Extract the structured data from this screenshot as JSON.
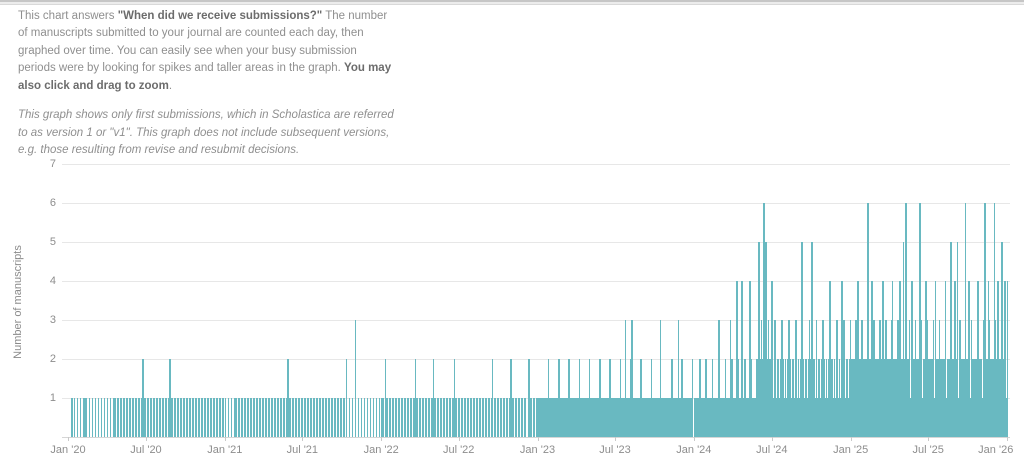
{
  "description": {
    "p1_text1": "This chart answers ",
    "p1_bold1": "\"When did we receive submissions?\"",
    "p1_text2": " The number of manuscripts submitted to your journal are counted each day, then graphed over time. You can easily see when your busy submission periods were by looking for spikes and taller areas in the graph. ",
    "p1_bold2": "You may also click and drag to zoom",
    "p1_text3": ".",
    "p2": "This graph shows only first submissions, which in Scholastica are referred to as version 1 or \"v1\". This graph does not include subsequent versions, e.g. those resulting from revise and resubmit decisions."
  },
  "chart_data": {
    "type": "bar",
    "title": "When did we receive submissions?",
    "xlabel": "",
    "ylabel": "Number of manuscripts",
    "ylim": [
      0,
      7
    ],
    "y_ticks": [
      1,
      2,
      3,
      4,
      5,
      6,
      7
    ],
    "grid": true,
    "legend": "none",
    "bar_color": "#69b9c1",
    "x_start": "2020-01-01",
    "x_end": "2026-01-01",
    "total_days": 2192,
    "x_ticks": [
      {
        "label": "Jan '20",
        "day": 0
      },
      {
        "label": "Jul '20",
        "day": 182
      },
      {
        "label": "Jan '21",
        "day": 366
      },
      {
        "label": "Jul '21",
        "day": 547
      },
      {
        "label": "Jan '22",
        "day": 731
      },
      {
        "label": "Jul '22",
        "day": 912
      },
      {
        "label": "Jan '23",
        "day": 1096
      },
      {
        "label": "Jul '23",
        "day": 1277
      },
      {
        "label": "Jan '24",
        "day": 1461
      },
      {
        "label": "Jul '24",
        "day": 1643
      },
      {
        "label": "Jan '25",
        "day": 1827
      },
      {
        "label": "Jul '25",
        "day": 2008
      },
      {
        "label": "Jan '26",
        "day": 2192
      }
    ],
    "bars_by_height": {
      "1": [
        6,
        9,
        13,
        20,
        27,
        34,
        38,
        41,
        48,
        55,
        62,
        69,
        76,
        83,
        90,
        97,
        104,
        108,
        115,
        122,
        129,
        136,
        143,
        150,
        157,
        164,
        171,
        178,
        185,
        192,
        199,
        206,
        213,
        220,
        227,
        234,
        241,
        248,
        255,
        262,
        269,
        276,
        283,
        290,
        297,
        304,
        311,
        318,
        325,
        332,
        339,
        346,
        353,
        360,
        366,
        373,
        380,
        387,
        391,
        398,
        405,
        412,
        419,
        426,
        433,
        440,
        447,
        454,
        461,
        468,
        475,
        482,
        489,
        496,
        503,
        510,
        517,
        524,
        531,
        538,
        545,
        552,
        559,
        566,
        573,
        580,
        587,
        594,
        601,
        608,
        615,
        622,
        629,
        636,
        643,
        655,
        662,
        676,
        683,
        690,
        697,
        704,
        711,
        718,
        725,
        731,
        735,
        743,
        750,
        757,
        764,
        771,
        778,
        785,
        792,
        799,
        806,
        813,
        820,
        827,
        834,
        841,
        848,
        855,
        862,
        869,
        876,
        883,
        890,
        897,
        904,
        911,
        918,
        925,
        932,
        939,
        946,
        953,
        960,
        967,
        974,
        981,
        988,
        995,
        1002,
        1009,
        1016,
        1023,
        1030,
        1037,
        1044,
        1051,
        1058,
        1065,
        1079,
        1086,
        1093,
        1096,
        1099,
        1102,
        1105,
        1108,
        1111,
        1114,
        1117,
        1123,
        1126,
        1129,
        1132,
        1135,
        1138,
        1141,
        1147,
        1150,
        1153,
        1156,
        1159,
        1162,
        1165,
        1171,
        1174,
        1177,
        1180,
        1183,
        1186,
        1189,
        1195,
        1198,
        1201,
        1204,
        1207,
        1210,
        1213,
        1219,
        1222,
        1225,
        1228,
        1231,
        1234,
        1237,
        1243,
        1246,
        1249,
        1252,
        1255,
        1258,
        1261,
        1267,
        1270,
        1273,
        1276,
        1279,
        1282,
        1285,
        1291,
        1294,
        1297,
        1303,
        1306,
        1309,
        1318,
        1321,
        1324,
        1327,
        1330,
        1333,
        1339,
        1342,
        1345,
        1348,
        1351,
        1354,
        1357,
        1363,
        1366,
        1369,
        1372,
        1375,
        1378,
        1384,
        1387,
        1390,
        1393,
        1396,
        1399,
        1402,
        1405,
        1411,
        1414,
        1417,
        1420,
        1426,
        1429,
        1435,
        1438,
        1441,
        1444,
        1447,
        1450,
        1453,
        1461,
        1464,
        1467,
        1470,
        1476,
        1479,
        1482,
        1485,
        1491,
        1494,
        1497,
        1500,
        1506,
        1509,
        1512,
        1515,
        1521,
        1524,
        1527,
        1530,
        1536,
        1539,
        1542,
        1551,
        1554,
        1557,
        1566,
        1569,
        1575,
        1581,
        1584,
        1587,
        1596,
        1599,
        1601,
        1603,
        1605,
        1609,
        1615,
        1621,
        1625,
        1629,
        1635,
        1639,
        1645,
        1647,
        1651,
        1653,
        1657,
        1659,
        1663,
        1669,
        1671,
        1675,
        1677,
        1683,
        1687,
        1689,
        1693,
        1695,
        1699,
        1701,
        1705,
        1707,
        1717,
        1719,
        1723,
        1725,
        1731,
        1737,
        1741,
        1743,
        1747,
        1749,
        1753,
        1755,
        1759,
        1765,
        1767,
        1771,
        1773,
        1779,
        1783,
        1785,
        1789,
        1791,
        1795,
        1797,
        1801,
        1803,
        1807,
        1813,
        1815,
        1819,
        1821,
        1829,
        1833,
        1841,
        1845,
        1849,
        1853,
        1857,
        1861,
        1869,
        1873,
        1877,
        1881,
        1885,
        1889,
        1897,
        1905,
        1909,
        1913,
        1917,
        1925,
        1929,
        1933,
        1937,
        1945,
        1953,
        1957,
        1961,
        1965,
        1973,
        1981,
        1985,
        1989,
        1993,
        1997,
        2009,
        2013,
        2017,
        2021,
        2025,
        2029,
        2037,
        2041,
        2045,
        2049,
        2053,
        2057,
        2065,
        2073,
        2077,
        2085,
        2089,
        2097,
        2105,
        2109,
        2113,
        2117,
        2125,
        2129,
        2133,
        2137,
        2141,
        2145,
        2153,
        2157,
        2165,
        2173,
        2181,
        2189
      ],
      "2": [
        173,
        236,
        512,
        648,
        739,
        809,
        851,
        900,
        989,
        1032,
        1074,
        1120,
        1144,
        1168,
        1192,
        1216,
        1240,
        1264,
        1288,
        1312,
        1336,
        1360,
        1408,
        1432,
        1456,
        1473,
        1488,
        1503,
        1533,
        1548,
        1563,
        1578,
        1593,
        1607,
        1613,
        1619,
        1631,
        1637,
        1643,
        1655,
        1661,
        1667,
        1673,
        1679,
        1685,
        1691,
        1703,
        1709,
        1715,
        1721,
        1727,
        1733,
        1739,
        1751,
        1757,
        1763,
        1769,
        1775,
        1781,
        1787,
        1799,
        1811,
        1817,
        1823,
        1827,
        1831,
        1835,
        1839,
        1847,
        1855,
        1859,
        1863,
        1867,
        1871,
        1883,
        1887,
        1891,
        1895,
        1899,
        1903,
        1911,
        1915,
        1919,
        1927,
        1931,
        1939,
        1943,
        1947,
        1951,
        1959,
        1967,
        1971,
        1975,
        1979,
        1983,
        1995,
        1999,
        2003,
        2007,
        2011,
        2015,
        2027,
        2031,
        2035,
        2039,
        2043,
        2051,
        2055,
        2063,
        2067,
        2071,
        2079,
        2083,
        2087,
        2091,
        2095,
        2099,
        2103,
        2111,
        2115,
        2119,
        2127,
        2131,
        2143,
        2151,
        2155,
        2159,
        2167,
        2171,
        2175,
        2183,
        2187
      ],
      "3": [
        669,
        1300,
        1315,
        1381,
        1423,
        1518,
        1545,
        1617,
        1633,
        1649,
        1665,
        1681,
        1697,
        1713,
        1729,
        1745,
        1761,
        1793,
        1809,
        1825,
        1837,
        1851,
        1879,
        1893,
        1907,
        1921,
        1935,
        1963,
        1977,
        1991,
        2005,
        2019,
        2033,
        2061,
        2081,
        2107,
        2121,
        2135,
        2149,
        2163,
        2177
      ],
      "4": [
        1560,
        1572,
        1590,
        1641,
        1777,
        1805,
        1843,
        1875,
        1901,
        1923,
        1941,
        1969,
        2001,
        2023,
        2047,
        2069,
        2101,
        2123,
        2147,
        2169,
        2185,
        2191
      ],
      "5": [
        1611,
        1627,
        1711,
        1735,
        1949,
        2059,
        2075,
        2179
      ],
      "6": [
        1623,
        1865,
        1955,
        1987,
        2093,
        2139,
        2161
      ]
    }
  }
}
